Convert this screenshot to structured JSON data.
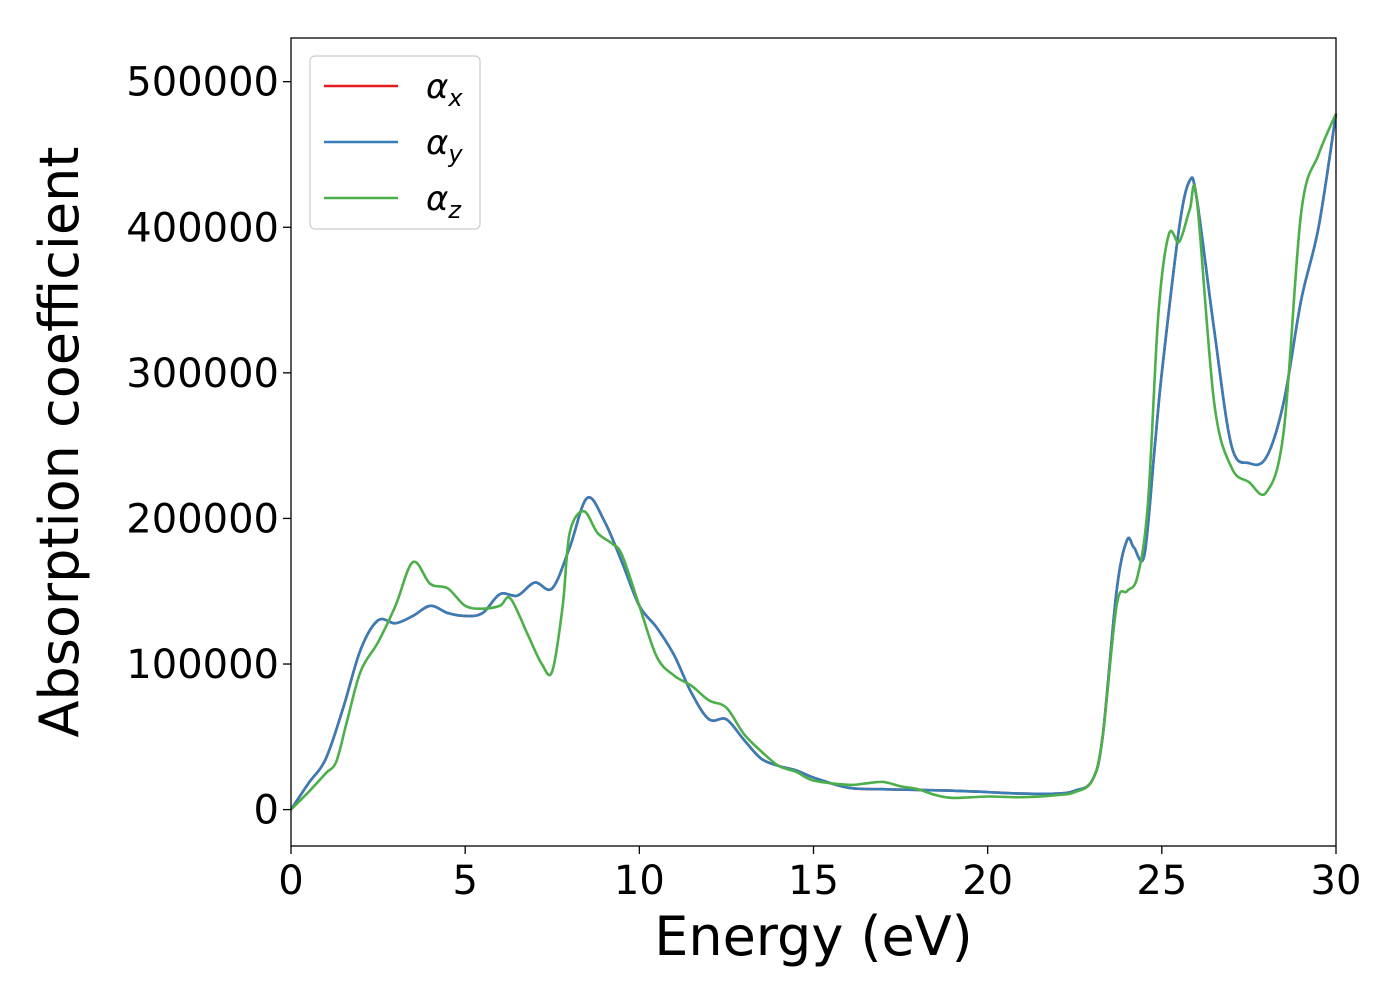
{
  "chart_data": {
    "type": "line",
    "title": "",
    "xlabel": "Energy (eV)",
    "ylabel": "Absorption coefficient",
    "xlim": [
      0,
      30
    ],
    "ylim": [
      -25000,
      530000
    ],
    "xticks": [
      0,
      5,
      10,
      15,
      20,
      25,
      30
    ],
    "yticks": [
      0,
      100000,
      200000,
      300000,
      400000,
      500000
    ],
    "grid": false,
    "legend_position": "top-left",
    "series": [
      {
        "symbol": "α",
        "subscript": "x",
        "color": "#e41a1c",
        "x": [
          0,
          0.5,
          1,
          1.5,
          2,
          2.5,
          3,
          3.5,
          4,
          4.5,
          5,
          5.5,
          6,
          6.5,
          7,
          7.5,
          8,
          8.5,
          9,
          9.5,
          10,
          10.5,
          11,
          11.5,
          12,
          12.5,
          13,
          13.5,
          14,
          14.5,
          15,
          16,
          17,
          18,
          19,
          20,
          21,
          22,
          22.5,
          23,
          23.3,
          23.7,
          24,
          24.2,
          24.5,
          24.8,
          25,
          25.5,
          25.8,
          26,
          26.5,
          27,
          27.5,
          28,
          28.5,
          29,
          29.5,
          30
        ],
        "values": [
          0,
          18000,
          35000,
          70000,
          110000,
          130000,
          128000,
          133000,
          140000,
          135000,
          133000,
          135000,
          148000,
          147000,
          156000,
          152000,
          180000,
          214000,
          198000,
          170000,
          140000,
          125000,
          106000,
          80000,
          62000,
          62000,
          48000,
          35000,
          30000,
          27000,
          22000,
          15000,
          14000,
          13500,
          13000,
          12000,
          11000,
          11000,
          13000,
          20000,
          50000,
          150000,
          185000,
          180000,
          175000,
          250000,
          300000,
          400000,
          432000,
          420000,
          330000,
          250000,
          238000,
          242000,
          280000,
          350000,
          400000,
          478000
        ]
      },
      {
        "symbol": "α",
        "subscript": "y",
        "color": "#377eb8",
        "x": [
          0,
          0.5,
          1,
          1.5,
          2,
          2.5,
          3,
          3.5,
          4,
          4.5,
          5,
          5.5,
          6,
          6.5,
          7,
          7.5,
          8,
          8.5,
          9,
          9.5,
          10,
          10.5,
          11,
          11.5,
          12,
          12.5,
          13,
          13.5,
          14,
          14.5,
          15,
          16,
          17,
          18,
          19,
          20,
          21,
          22,
          22.5,
          23,
          23.3,
          23.7,
          24,
          24.2,
          24.5,
          24.8,
          25,
          25.5,
          25.8,
          26,
          26.5,
          27,
          27.5,
          28,
          28.5,
          29,
          29.5,
          30
        ],
        "values": [
          0,
          18000,
          35000,
          70000,
          110000,
          130000,
          128000,
          133000,
          140000,
          135000,
          133000,
          135000,
          148000,
          147000,
          156000,
          152000,
          180000,
          214000,
          198000,
          170000,
          140000,
          125000,
          106000,
          80000,
          62000,
          62000,
          48000,
          35000,
          30000,
          27000,
          22000,
          15000,
          14000,
          13500,
          13000,
          12000,
          11000,
          11000,
          13000,
          20000,
          50000,
          150000,
          185000,
          180000,
          175000,
          250000,
          300000,
          400000,
          432000,
          420000,
          330000,
          250000,
          238000,
          242000,
          280000,
          350000,
          400000,
          478000
        ]
      },
      {
        "symbol": "α",
        "subscript": "z",
        "color": "#4daf4a",
        "x": [
          0,
          0.5,
          1,
          1.3,
          1.6,
          2,
          2.5,
          3,
          3.5,
          4,
          4.5,
          5,
          5.5,
          6,
          6.3,
          6.8,
          7.2,
          7.5,
          7.8,
          8,
          8.4,
          8.8,
          9.2,
          9.5,
          10,
          10.5,
          11,
          11.5,
          12,
          12.5,
          13,
          13.5,
          14,
          14.5,
          15,
          16,
          16.5,
          17,
          17.5,
          18,
          18.5,
          19,
          20,
          21,
          22,
          22.5,
          23,
          23.3,
          23.7,
          24,
          24.3,
          24.6,
          24.9,
          25.2,
          25.5,
          25.8,
          26,
          26.5,
          27,
          27.5,
          28,
          28.5,
          29,
          29.5,
          30
        ],
        "values": [
          0,
          12000,
          25000,
          33000,
          60000,
          95000,
          115000,
          140000,
          170000,
          155000,
          152000,
          140000,
          138000,
          140000,
          145000,
          120000,
          100000,
          95000,
          140000,
          190000,
          205000,
          190000,
          183000,
          175000,
          140000,
          105000,
          92000,
          85000,
          75000,
          70000,
          52000,
          40000,
          30000,
          26000,
          20000,
          17000,
          18000,
          19000,
          16000,
          14000,
          10000,
          8000,
          9000,
          8500,
          10000,
          12000,
          20000,
          50000,
          140000,
          150000,
          160000,
          210000,
          340000,
          395000,
          390000,
          412000,
          420000,
          280000,
          235000,
          225000,
          218000,
          260000,
          410000,
          450000,
          478000
        ]
      }
    ]
  }
}
